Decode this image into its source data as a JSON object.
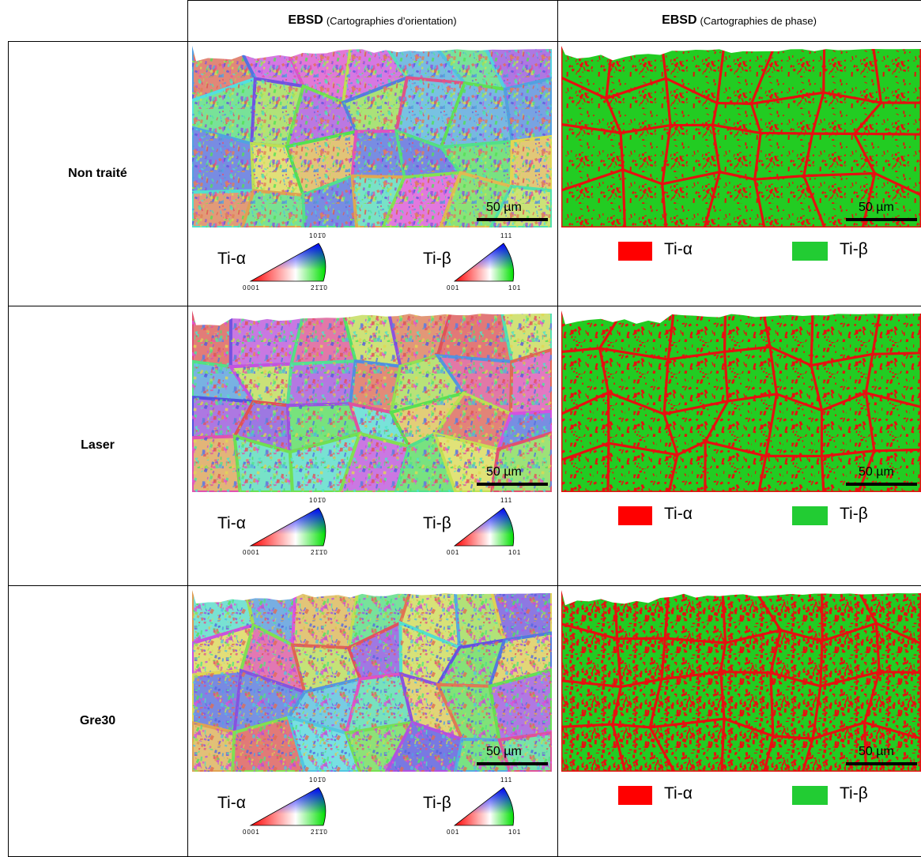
{
  "header": {
    "cells": [
      {
        "bold": "EBSD",
        "text": "(Cartographies d’orientation)"
      },
      {
        "bold": "EBSD",
        "text": "(Cartographies de phase)"
      }
    ]
  },
  "rows": [
    {
      "label": "Non traité",
      "orientation": {
        "scale": "50 µm",
        "alpha": "Ti-α",
        "alpha_triangle": [
          "101̄0",
          "0001",
          "21̄1̄0"
        ],
        "beta": "Ti-β",
        "beta_triangle": [
          "111",
          "001",
          "101"
        ]
      },
      "phase": {
        "scale": "50 µm",
        "alpha": "Ti-α",
        "beta": "Ti-β"
      }
    },
    {
      "label": "Laser",
      "orientation": {
        "scale": "50 µm",
        "alpha": "Ti-α",
        "alpha_triangle": [
          "101̄0",
          "0001",
          "21̄1̄0"
        ],
        "beta": "Ti-β",
        "beta_triangle": [
          "111",
          "001",
          "101"
        ]
      },
      "phase": {
        "scale": "50 µm",
        "alpha": "Ti-α",
        "beta": "Ti-β"
      }
    },
    {
      "label": "Gre30",
      "orientation": {
        "scale": "50 µm",
        "alpha": "Ti-α",
        "alpha_triangle": [
          "101̄0",
          "0001",
          "21̄1̄0"
        ],
        "beta": "Ti-β",
        "beta_triangle": [
          "111",
          "001",
          "101"
        ]
      },
      "phase": {
        "scale": "50 µm",
        "alpha": "Ti-α",
        "beta": "Ti-β"
      }
    }
  ]
}
